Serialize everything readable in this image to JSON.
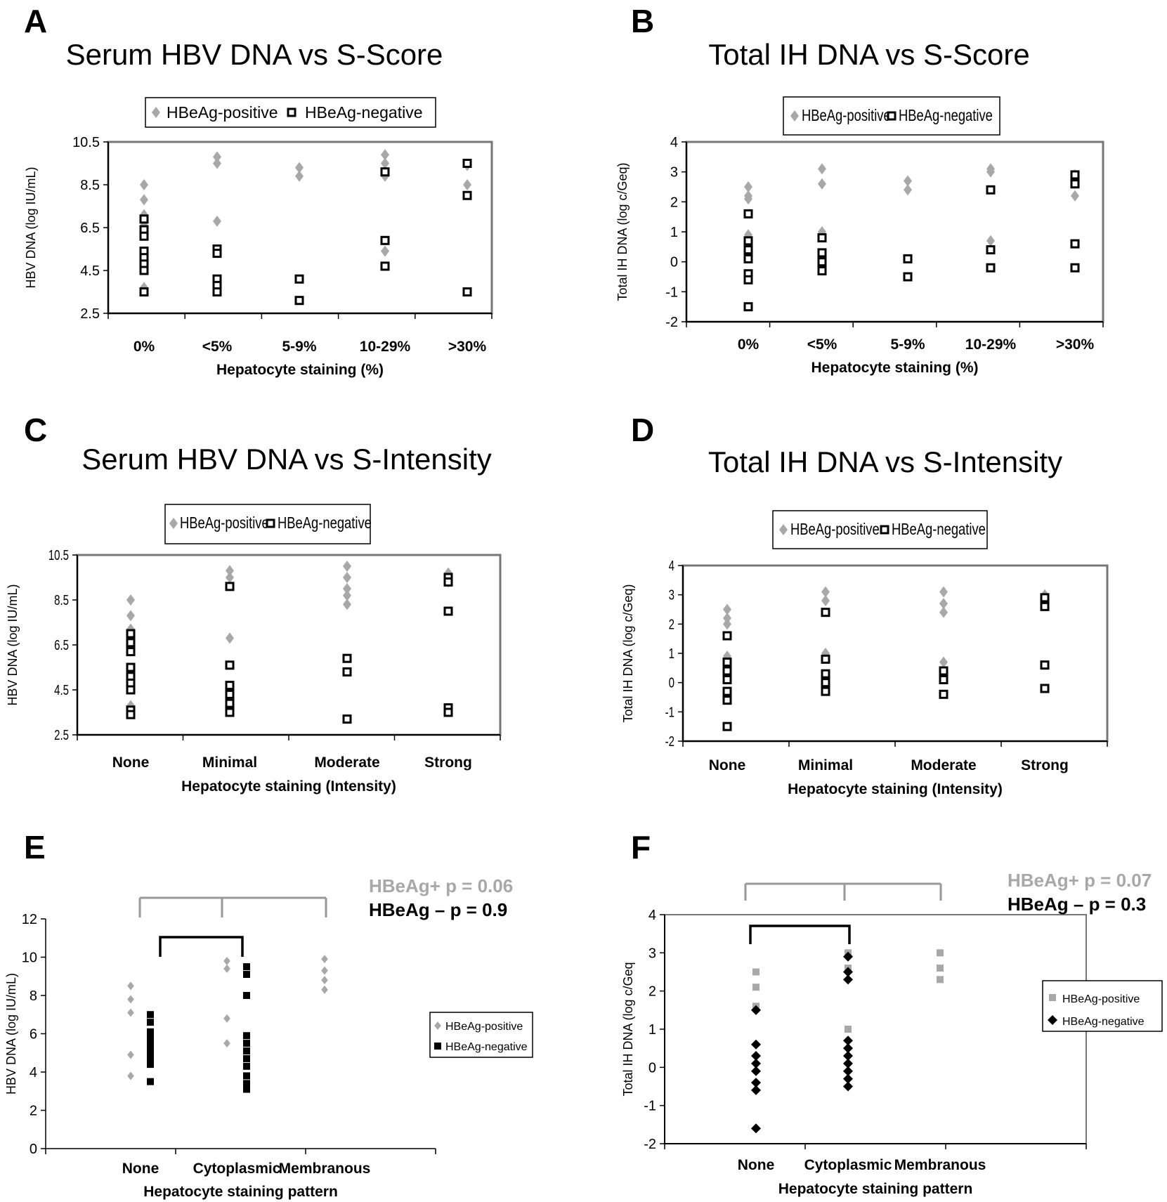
{
  "colors": {
    "positive": "#a8a8a8",
    "negative": "#000000",
    "frame": "#777777",
    "bracket_gray": "#999999"
  },
  "chart_data": [
    {
      "id": "A",
      "type": "scatter",
      "panel_label": "A",
      "title": "Serum HBV DNA vs S-Score",
      "xlabel": "Hepatocyte staining (%)",
      "ylabel": "HBV DNA (log IU/mL)",
      "categories": [
        "0%",
        "<5%",
        "5-9%",
        "10-29%",
        ">30%"
      ],
      "ylim": [
        2.5,
        10.5
      ],
      "yticks": [
        "10.5",
        "8.5",
        "6.5",
        "4.5",
        "2.5"
      ],
      "ytick_values": [
        10.5,
        8.5,
        6.5,
        4.5,
        2.5
      ],
      "legend": [
        "HBeAg-positive",
        "HBeAg-negative"
      ],
      "legend_position": "top",
      "series": [
        {
          "name": "HBeAg-positive",
          "marker": "diamond",
          "points": [
            [
              0,
              8.5
            ],
            [
              0,
              7.8
            ],
            [
              0,
              7.1
            ],
            [
              0,
              6.6
            ],
            [
              0,
              4.9
            ],
            [
              0,
              3.7
            ],
            [
              1,
              9.8
            ],
            [
              1,
              9.5
            ],
            [
              1,
              6.8
            ],
            [
              2,
              9.3
            ],
            [
              2,
              8.9
            ],
            [
              3,
              9.9
            ],
            [
              3,
              9.5
            ],
            [
              3,
              8.9
            ],
            [
              3,
              5.4
            ],
            [
              4,
              9.4
            ],
            [
              4,
              8.5
            ]
          ]
        },
        {
          "name": "HBeAg-negative",
          "marker": "open-square",
          "points": [
            [
              0,
              6.9
            ],
            [
              0,
              6.4
            ],
            [
              0,
              6.1
            ],
            [
              0,
              5.4
            ],
            [
              0,
              5.1
            ],
            [
              0,
              4.8
            ],
            [
              0,
              4.5
            ],
            [
              0,
              3.5
            ],
            [
              1,
              5.5
            ],
            [
              1,
              5.3
            ],
            [
              1,
              4.1
            ],
            [
              1,
              3.8
            ],
            [
              1,
              3.5
            ],
            [
              2,
              4.1
            ],
            [
              2,
              3.1
            ],
            [
              3,
              9.1
            ],
            [
              3,
              5.9
            ],
            [
              3,
              4.7
            ],
            [
              4,
              9.5
            ],
            [
              4,
              8.0
            ],
            [
              4,
              3.5
            ]
          ]
        }
      ]
    },
    {
      "id": "B",
      "type": "scatter",
      "panel_label": "B",
      "title": "Total IH DNA vs S-Score",
      "xlabel": "Hepatocyte staining (%)",
      "ylabel": "Total IH DNA (log c/Geq)",
      "categories": [
        "0%",
        "<5%",
        "5-9%",
        "10-29%",
        ">30%"
      ],
      "ylim": [
        -2,
        4
      ],
      "yticks": [
        "4",
        "3",
        "2",
        "1",
        "0",
        "-1",
        "-2"
      ],
      "ytick_values": [
        4,
        3,
        2,
        1,
        0,
        -1,
        -2
      ],
      "legend": [
        "HBeAg-positive",
        "HBeAg-negative"
      ],
      "legend_position": "top",
      "series": [
        {
          "name": "HBeAg-positive",
          "marker": "diamond",
          "points": [
            [
              0,
              2.5
            ],
            [
              0,
              2.2
            ],
            [
              0,
              2.1
            ],
            [
              0,
              0.9
            ],
            [
              1,
              3.1
            ],
            [
              1,
              2.6
            ],
            [
              1,
              1.0
            ],
            [
              2,
              2.7
            ],
            [
              2,
              2.4
            ],
            [
              3,
              3.1
            ],
            [
              3,
              3.0
            ],
            [
              3,
              0.7
            ],
            [
              4,
              2.9
            ],
            [
              4,
              2.2
            ]
          ]
        },
        {
          "name": "HBeAg-negative",
          "marker": "open-square",
          "points": [
            [
              0,
              1.6
            ],
            [
              0,
              0.7
            ],
            [
              0,
              0.4
            ],
            [
              0,
              0.1
            ],
            [
              0,
              -0.4
            ],
            [
              0,
              -0.6
            ],
            [
              0,
              -1.5
            ],
            [
              1,
              0.8
            ],
            [
              1,
              0.3
            ],
            [
              1,
              0.0
            ],
            [
              1,
              -0.3
            ],
            [
              2,
              0.1
            ],
            [
              2,
              -0.5
            ],
            [
              3,
              2.4
            ],
            [
              3,
              0.4
            ],
            [
              3,
              -0.2
            ],
            [
              4,
              2.9
            ],
            [
              4,
              2.6
            ],
            [
              4,
              0.6
            ],
            [
              4,
              -0.2
            ]
          ]
        }
      ]
    },
    {
      "id": "C",
      "type": "scatter",
      "panel_label": "C",
      "title": "Serum HBV DNA vs S-Intensity",
      "xlabel": "Hepatocyte staining (Intensity)",
      "ylabel": "HBV DNA (log IU/mL)",
      "categories": [
        "None",
        "Minimal",
        "Moderate",
        "Strong"
      ],
      "ylim": [
        2.5,
        10.5
      ],
      "yticks": [
        "10.5",
        "8.5",
        "6.5",
        "4.5",
        "2.5"
      ],
      "ytick_values": [
        10.5,
        8.5,
        6.5,
        4.5,
        2.5
      ],
      "legend": [
        "HBeAg-positive",
        "HBeAg-negative"
      ],
      "legend_position": "top",
      "series": [
        {
          "name": "HBeAg-positive",
          "marker": "diamond",
          "points": [
            [
              0,
              8.5
            ],
            [
              0,
              7.8
            ],
            [
              0,
              7.2
            ],
            [
              0,
              4.9
            ],
            [
              0,
              3.8
            ],
            [
              1,
              9.8
            ],
            [
              1,
              9.5
            ],
            [
              1,
              6.8
            ],
            [
              2,
              10.0
            ],
            [
              2,
              9.5
            ],
            [
              2,
              9.0
            ],
            [
              2,
              8.7
            ],
            [
              2,
              8.3
            ],
            [
              3,
              9.7
            ],
            [
              3,
              9.3
            ]
          ]
        },
        {
          "name": "HBeAg-negative",
          "marker": "open-square",
          "points": [
            [
              0,
              7.0
            ],
            [
              0,
              6.6
            ],
            [
              0,
              6.2
            ],
            [
              0,
              5.5
            ],
            [
              0,
              5.1
            ],
            [
              0,
              4.8
            ],
            [
              0,
              4.5
            ],
            [
              0,
              3.6
            ],
            [
              0,
              3.4
            ],
            [
              1,
              9.1
            ],
            [
              1,
              5.6
            ],
            [
              1,
              4.7
            ],
            [
              1,
              4.3
            ],
            [
              1,
              3.9
            ],
            [
              1,
              3.5
            ],
            [
              2,
              5.9
            ],
            [
              2,
              5.3
            ],
            [
              2,
              3.2
            ],
            [
              3,
              9.5
            ],
            [
              3,
              9.3
            ],
            [
              3,
              8.0
            ],
            [
              3,
              3.7
            ],
            [
              3,
              3.5
            ]
          ]
        }
      ]
    },
    {
      "id": "D",
      "type": "scatter",
      "panel_label": "D",
      "title": "Total IH DNA vs S-Intensity",
      "xlabel": "Hepatocyte staining (Intensity)",
      "ylabel": "Total IH DNA (log c/Geq)",
      "categories": [
        "None",
        "Minimal",
        "Moderate",
        "Strong"
      ],
      "ylim": [
        -2,
        4
      ],
      "yticks": [
        "4",
        "3",
        "2",
        "1",
        "0",
        "-1",
        "-2"
      ],
      "ytick_values": [
        4,
        3,
        2,
        1,
        0,
        -1,
        -2
      ],
      "legend": [
        "HBeAg-positive",
        "HBeAg-negative"
      ],
      "legend_position": "top",
      "series": [
        {
          "name": "HBeAg-positive",
          "marker": "diamond",
          "points": [
            [
              0,
              2.5
            ],
            [
              0,
              2.2
            ],
            [
              0,
              2.0
            ],
            [
              0,
              0.9
            ],
            [
              1,
              3.1
            ],
            [
              1,
              2.8
            ],
            [
              1,
              1.0
            ],
            [
              2,
              3.1
            ],
            [
              2,
              2.7
            ],
            [
              2,
              2.4
            ],
            [
              2,
              0.7
            ],
            [
              3,
              3.0
            ],
            [
              3,
              2.7
            ]
          ]
        },
        {
          "name": "HBeAg-negative",
          "marker": "open-square",
          "points": [
            [
              0,
              1.6
            ],
            [
              0,
              0.7
            ],
            [
              0,
              0.4
            ],
            [
              0,
              0.1
            ],
            [
              0,
              -0.3
            ],
            [
              0,
              -0.6
            ],
            [
              0,
              -1.5
            ],
            [
              1,
              2.4
            ],
            [
              1,
              0.8
            ],
            [
              1,
              0.3
            ],
            [
              1,
              0.0
            ],
            [
              1,
              -0.3
            ],
            [
              2,
              0.4
            ],
            [
              2,
              0.1
            ],
            [
              2,
              -0.4
            ],
            [
              3,
              2.9
            ],
            [
              3,
              2.6
            ],
            [
              3,
              0.6
            ],
            [
              3,
              -0.2
            ]
          ]
        }
      ]
    },
    {
      "id": "E",
      "type": "scatter",
      "panel_label": "E",
      "title": "",
      "xlabel": "Hepatocyte staining pattern",
      "ylabel": "HBV DNA (log IU/mL)",
      "categories": [
        "None",
        "Cytoplasmic",
        "Membranous"
      ],
      "ylim": [
        0,
        12
      ],
      "yticks": [
        "12",
        "10",
        "8",
        "6",
        "4",
        "2",
        "0"
      ],
      "ytick_values": [
        12,
        10,
        8,
        6,
        4,
        2,
        0
      ],
      "legend": [
        "HBeAg-positive",
        "HBeAg-negative"
      ],
      "legend_position": "right",
      "annotations": {
        "p_positive": "HBeAg+ p = 0.06",
        "p_negative": "HBeAg – p = 0.9"
      },
      "series": [
        {
          "name": "HBeAg-positive",
          "marker": "small-diamond",
          "points": [
            [
              0,
              8.5
            ],
            [
              0,
              7.8
            ],
            [
              0,
              7.1
            ],
            [
              0,
              4.9
            ],
            [
              0,
              3.8
            ],
            [
              1,
              9.8
            ],
            [
              1,
              9.4
            ],
            [
              1,
              6.8
            ],
            [
              1,
              5.5
            ],
            [
              2,
              9.9
            ],
            [
              2,
              9.3
            ],
            [
              2,
              8.8
            ],
            [
              2,
              8.3
            ]
          ]
        },
        {
          "name": "HBeAg-negative",
          "marker": "filled-square",
          "points": [
            [
              0,
              7.0
            ],
            [
              0,
              6.6
            ],
            [
              0,
              6.1
            ],
            [
              0,
              5.8
            ],
            [
              0,
              5.5
            ],
            [
              0,
              5.2
            ],
            [
              0,
              5.0
            ],
            [
              0,
              4.7
            ],
            [
              0,
              4.4
            ],
            [
              0,
              3.5
            ],
            [
              1,
              9.5
            ],
            [
              1,
              9.1
            ],
            [
              1,
              8.0
            ],
            [
              1,
              5.9
            ],
            [
              1,
              5.5
            ],
            [
              1,
              5.1
            ],
            [
              1,
              4.7
            ],
            [
              1,
              4.3
            ],
            [
              1,
              3.8
            ],
            [
              1,
              3.4
            ],
            [
              1,
              3.1
            ]
          ]
        }
      ]
    },
    {
      "id": "F",
      "type": "scatter",
      "panel_label": "F",
      "title": "",
      "xlabel": "Hepatocyte staining pattern",
      "ylabel": "Total IH DNA  (log c/Geq",
      "categories": [
        "None",
        "Cytoplasmic",
        "Membranous"
      ],
      "ylim": [
        -2,
        4
      ],
      "yticks": [
        "4",
        "3",
        "2",
        "1",
        "0",
        "-1",
        "-2"
      ],
      "ytick_values": [
        4,
        3,
        2,
        1,
        0,
        -1,
        -2
      ],
      "legend": [
        "HBeAg-positive",
        "HBeAg-negative"
      ],
      "legend_position": "right",
      "annotations": {
        "p_positive": "HBeAg+ p = 0.07",
        "p_negative": "HBeAg – p = 0.3"
      },
      "series": [
        {
          "name": "HBeAg-positive",
          "marker": "filled-square",
          "points": [
            [
              0,
              2.5
            ],
            [
              0,
              2.1
            ],
            [
              0,
              1.6
            ],
            [
              1,
              3.0
            ],
            [
              1,
              2.6
            ],
            [
              1,
              1.0
            ],
            [
              2,
              3.0
            ],
            [
              2,
              2.6
            ],
            [
              2,
              2.3
            ]
          ]
        },
        {
          "name": "HBeAg-negative",
          "marker": "filled-diamond",
          "points": [
            [
              0,
              1.5
            ],
            [
              0,
              0.6
            ],
            [
              0,
              0.3
            ],
            [
              0,
              0.1
            ],
            [
              0,
              -0.1
            ],
            [
              0,
              -0.4
            ],
            [
              0,
              -0.6
            ],
            [
              0,
              -1.6
            ],
            [
              1,
              2.9
            ],
            [
              1,
              2.5
            ],
            [
              1,
              2.3
            ],
            [
              1,
              0.7
            ],
            [
              1,
              0.5
            ],
            [
              1,
              0.3
            ],
            [
              1,
              0.1
            ],
            [
              1,
              -0.1
            ],
            [
              1,
              -0.3
            ],
            [
              1,
              -0.5
            ]
          ]
        }
      ]
    }
  ]
}
